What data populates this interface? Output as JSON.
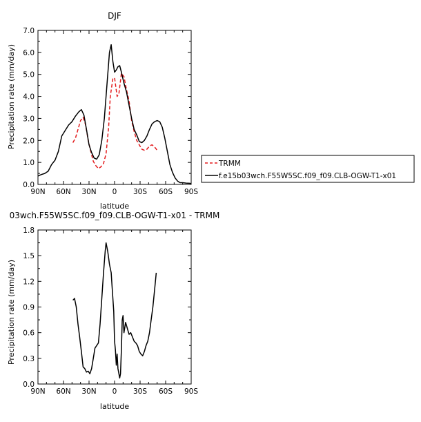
{
  "chart_data": [
    {
      "type": "line",
      "title": "DJF",
      "xlabel": "latitude",
      "ylabel": "Precipitation rate (mm/day)",
      "xlim": [
        90,
        -90
      ],
      "ylim": [
        0,
        7
      ],
      "xtick_values": [
        90,
        60,
        30,
        0,
        -30,
        -60,
        -90
      ],
      "xtick_labels": [
        "90N",
        "60N",
        "30N",
        "0",
        "30S",
        "60S",
        "90S"
      ],
      "ytick_values": [
        0,
        1,
        2,
        3,
        4,
        5,
        6,
        7
      ],
      "ytick_labels": [
        "0.0",
        "1.0",
        "2.0",
        "3.0",
        "4.0",
        "5.0",
        "6.0",
        "7.0"
      ],
      "legend_position": "right",
      "series": [
        {
          "name": "TRMM",
          "color": "#e31a1c",
          "dash": "dashed",
          "x": [
            49,
            46,
            43,
            40,
            37,
            34,
            31,
            28,
            25,
            22,
            19,
            16,
            13,
            10,
            7,
            5,
            2,
            0,
            -3,
            -5,
            -8,
            -11,
            -14,
            -17,
            -20,
            -23,
            -26,
            -29,
            -32,
            -35,
            -38,
            -41,
            -44,
            -47,
            -50
          ],
          "y": [
            1.9,
            2.1,
            2.5,
            2.9,
            3.05,
            2.7,
            2.0,
            1.5,
            1.05,
            0.85,
            0.72,
            0.8,
            0.95,
            1.4,
            2.6,
            4.0,
            4.8,
            4.85,
            4.0,
            4.1,
            5.05,
            4.9,
            4.3,
            3.8,
            2.9,
            2.4,
            2.0,
            1.8,
            1.6,
            1.55,
            1.6,
            1.75,
            1.8,
            1.7,
            1.55
          ]
        },
        {
          "name": "f.e15b03wch.F55W5SC.f09_f09.CLB-OGW-T1-x01",
          "color": "#000000",
          "dash": "solid",
          "x": [
            90,
            86,
            82,
            78,
            74,
            70,
            66,
            62,
            58,
            54,
            50,
            46,
            42,
            39,
            36,
            33,
            30,
            27,
            24,
            21,
            18,
            15,
            12,
            9,
            6,
            4,
            2,
            0,
            -2,
            -4,
            -6,
            -8,
            -11,
            -14,
            -17,
            -20,
            -23,
            -26,
            -29,
            -32,
            -35,
            -38,
            -41,
            -44,
            -47,
            -50,
            -53,
            -56,
            -59,
            -62,
            -65,
            -68,
            -71,
            -74,
            -77,
            -80,
            -84,
            -88,
            -90
          ],
          "y": [
            0.38,
            0.45,
            0.5,
            0.6,
            0.9,
            1.1,
            1.5,
            2.2,
            2.45,
            2.7,
            2.85,
            3.1,
            3.3,
            3.4,
            3.15,
            2.5,
            1.8,
            1.45,
            1.2,
            1.15,
            1.35,
            2.0,
            3.0,
            4.5,
            6.0,
            6.35,
            5.6,
            5.1,
            5.2,
            5.35,
            5.4,
            5.1,
            4.6,
            4.2,
            3.6,
            3.0,
            2.5,
            2.25,
            1.95,
            1.9,
            2.0,
            2.2,
            2.5,
            2.75,
            2.85,
            2.9,
            2.85,
            2.6,
            2.1,
            1.5,
            0.9,
            0.55,
            0.3,
            0.15,
            0.08,
            0.08,
            0.06,
            0.05,
            0.04
          ]
        }
      ]
    },
    {
      "type": "line",
      "title": "03wch.F55W5SC.f09_f09.CLB-OGW-T1-x01 - TRMM",
      "xlabel": "latitude",
      "ylabel": "Precipitation rate (mm/day)",
      "xlim": [
        90,
        -90
      ],
      "ylim": [
        0,
        1.8
      ],
      "xtick_values": [
        90,
        60,
        30,
        0,
        -30,
        -60,
        -90
      ],
      "xtick_labels": [
        "90N",
        "60N",
        "30N",
        "0",
        "30S",
        "60S",
        "90S"
      ],
      "ytick_values": [
        0,
        0.3,
        0.6,
        0.9,
        1.2,
        1.5,
        1.8
      ],
      "ytick_labels": [
        "0.0",
        "0.3",
        "0.6",
        "0.9",
        "1.2",
        "1.5",
        "1.8"
      ],
      "series": [
        {
          "color": "#000000",
          "dash": "solid",
          "x": [
            49,
            47,
            45,
            43,
            41,
            39,
            37,
            35,
            33,
            31,
            29,
            27,
            25,
            23,
            21,
            19,
            17,
            15,
            13,
            11,
            10,
            8,
            6,
            4,
            3,
            1,
            0,
            -1,
            -2,
            -3,
            -4,
            -6,
            -7,
            -8,
            -9,
            -10,
            -11,
            -13,
            -15,
            -17,
            -19,
            -21,
            -23,
            -25,
            -27,
            -29,
            -31,
            -33,
            -35,
            -37,
            -39,
            -41,
            -43,
            -45,
            -47,
            -49
          ],
          "y": [
            0.98,
            1.0,
            0.9,
            0.7,
            0.55,
            0.38,
            0.2,
            0.18,
            0.14,
            0.15,
            0.12,
            0.18,
            0.3,
            0.42,
            0.45,
            0.48,
            0.7,
            1.0,
            1.3,
            1.55,
            1.65,
            1.55,
            1.4,
            1.3,
            1.15,
            0.85,
            0.5,
            0.4,
            0.22,
            0.35,
            0.18,
            0.07,
            0.12,
            0.4,
            0.75,
            0.8,
            0.6,
            0.72,
            0.65,
            0.58,
            0.6,
            0.55,
            0.5,
            0.48,
            0.45,
            0.38,
            0.35,
            0.33,
            0.38,
            0.45,
            0.5,
            0.6,
            0.75,
            0.9,
            1.1,
            1.3
          ]
        }
      ]
    }
  ]
}
